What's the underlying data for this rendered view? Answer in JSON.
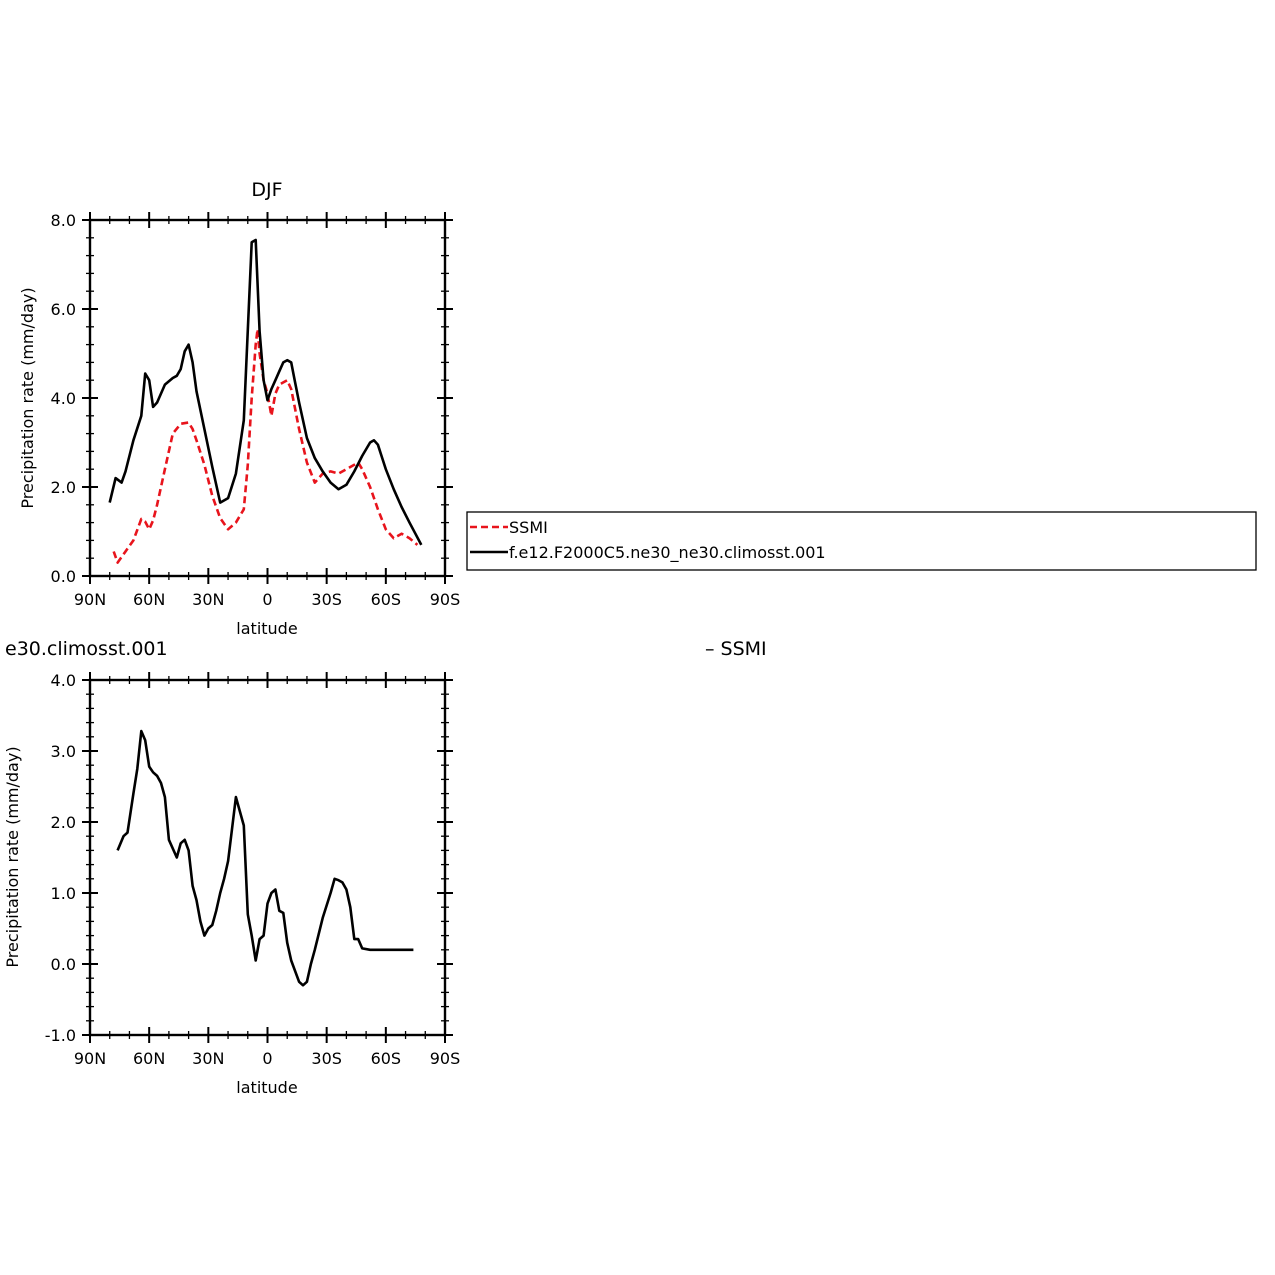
{
  "chart_data": [
    {
      "type": "line",
      "title": "DJF",
      "xlabel": "latitude",
      "ylabel": "Precipitation rate (mm/day)",
      "xlim": [
        90,
        -90
      ],
      "ylim": [
        0,
        8
      ],
      "xticks": [
        90,
        60,
        30,
        0,
        -30,
        -60,
        -90
      ],
      "xtick_labels": [
        "90N",
        "60N",
        "30N",
        "0",
        "30S",
        "60S",
        "90S"
      ],
      "yticks": [
        0,
        2,
        4,
        6,
        8
      ],
      "ytick_labels": [
        "0.0",
        "2.0",
        "4.0",
        "6.0",
        "8.0"
      ],
      "legend": {
        "placement": "right",
        "entries": [
          "SSMI",
          "f.e12.F2000C5.ne30_ne30.climosst.001"
        ]
      },
      "series": [
        {
          "name": "SSMI",
          "color": "#e8141c",
          "dash": "dashed",
          "x": [
            78,
            76,
            72,
            68,
            64,
            62,
            60,
            58,
            56,
            52,
            48,
            44,
            40,
            38,
            36,
            32,
            28,
            24,
            20,
            16,
            12,
            10,
            8,
            6,
            5,
            4,
            2,
            0,
            -2,
            -4,
            -6,
            -8,
            -10,
            -12,
            -16,
            -20,
            -24,
            -28,
            -32,
            -36,
            -40,
            -44,
            -46,
            -48,
            -52,
            -56,
            -60,
            -64,
            -68,
            -72,
            -76
          ],
          "y": [
            0.55,
            0.3,
            0.55,
            0.8,
            1.28,
            1.22,
            1.05,
            1.25,
            1.6,
            2.4,
            3.2,
            3.42,
            3.45,
            3.3,
            3.05,
            2.5,
            1.8,
            1.3,
            1.05,
            1.2,
            1.5,
            2.5,
            4.0,
            5.2,
            5.55,
            5.0,
            4.4,
            4.1,
            3.6,
            4.1,
            4.3,
            4.35,
            4.4,
            4.2,
            3.3,
            2.55,
            2.1,
            2.3,
            2.35,
            2.3,
            2.4,
            2.5,
            2.55,
            2.4,
            2.0,
            1.5,
            1.05,
            0.85,
            0.95,
            0.85,
            0.7
          ]
        },
        {
          "name": "f.e12.F2000C5.ne30_ne30.climosst.001",
          "color": "#000000",
          "dash": "solid",
          "x": [
            80,
            77,
            74,
            72,
            68,
            64,
            62,
            60,
            58,
            56,
            52,
            48,
            46,
            44,
            42,
            40,
            38,
            36,
            32,
            28,
            24,
            20,
            16,
            12,
            8,
            6,
            4,
            2,
            0,
            -2,
            -4,
            -6,
            -8,
            -10,
            -12,
            -14,
            -16,
            -20,
            -24,
            -28,
            -32,
            -36,
            -40,
            -44,
            -48,
            -52,
            -54,
            -56,
            -60,
            -64,
            -68,
            -72,
            -75,
            -78
          ],
          "y": [
            1.65,
            2.2,
            2.1,
            2.35,
            3.05,
            3.6,
            4.55,
            4.4,
            3.8,
            3.9,
            4.3,
            4.45,
            4.5,
            4.65,
            5.05,
            5.2,
            4.8,
            4.15,
            3.3,
            2.45,
            1.65,
            1.75,
            2.3,
            3.5,
            7.5,
            7.55,
            5.5,
            4.4,
            3.95,
            4.2,
            4.4,
            4.6,
            4.8,
            4.85,
            4.8,
            4.35,
            3.9,
            3.1,
            2.65,
            2.35,
            2.1,
            1.95,
            2.05,
            2.35,
            2.7,
            3.0,
            3.05,
            2.95,
            2.4,
            1.95,
            1.55,
            1.2,
            0.95,
            0.7
          ]
        }
      ]
    },
    {
      "type": "line",
      "title": "e30.climosst.001",
      "title_right": "– SSMI",
      "xlabel": "latitude",
      "ylabel": "Precipitation rate (mm/day)",
      "xlim": [
        90,
        -90
      ],
      "ylim": [
        -1,
        4
      ],
      "xticks": [
        90,
        60,
        30,
        0,
        -30,
        -60,
        -90
      ],
      "xtick_labels": [
        "90N",
        "60N",
        "30N",
        "0",
        "30S",
        "60S",
        "90S"
      ],
      "yticks": [
        -1,
        0,
        1,
        2,
        3,
        4
      ],
      "ytick_labels": [
        "-1.0",
        "0.0",
        "1.0",
        "2.0",
        "3.0",
        "4.0"
      ],
      "series": [
        {
          "color": "#000000",
          "dash": "solid",
          "x": [
            76,
            73,
            71,
            68,
            66,
            64,
            62,
            60,
            58,
            56,
            54,
            52,
            50,
            46,
            44,
            42,
            40,
            38,
            36,
            34,
            32,
            30,
            28,
            26,
            24,
            22,
            20,
            18,
            16,
            12,
            10,
            8,
            6,
            4,
            2,
            0,
            -2,
            -4,
            -6,
            -8,
            -10,
            -12,
            -16,
            -18,
            -20,
            -22,
            -24,
            -28,
            -32,
            -34,
            -36,
            -38,
            -40,
            -42,
            -44,
            -46,
            -48,
            -52,
            -56,
            -58,
            -60,
            -62,
            -64,
            -66,
            -68,
            -70,
            -72,
            -74
          ],
          "y": [
            1.6,
            1.8,
            1.85,
            2.4,
            2.75,
            3.28,
            3.15,
            2.78,
            2.7,
            2.65,
            2.55,
            2.35,
            1.75,
            1.5,
            1.7,
            1.75,
            1.6,
            1.1,
            0.9,
            0.6,
            0.4,
            0.5,
            0.55,
            0.75,
            1.0,
            1.2,
            1.45,
            1.9,
            2.35,
            1.95,
            0.7,
            0.4,
            0.05,
            0.35,
            0.4,
            0.85,
            1.0,
            1.05,
            0.75,
            0.72,
            0.3,
            0.05,
            -0.25,
            -0.3,
            -0.25,
            0.0,
            0.2,
            0.65,
            1.0,
            1.2,
            1.18,
            1.15,
            1.05,
            0.8,
            0.35,
            0.35,
            0.22,
            0.2,
            0.2,
            0.2,
            0.2,
            0.2,
            0.2,
            0.2,
            0.2,
            0.2,
            0.2,
            0.2
          ]
        }
      ]
    }
  ]
}
